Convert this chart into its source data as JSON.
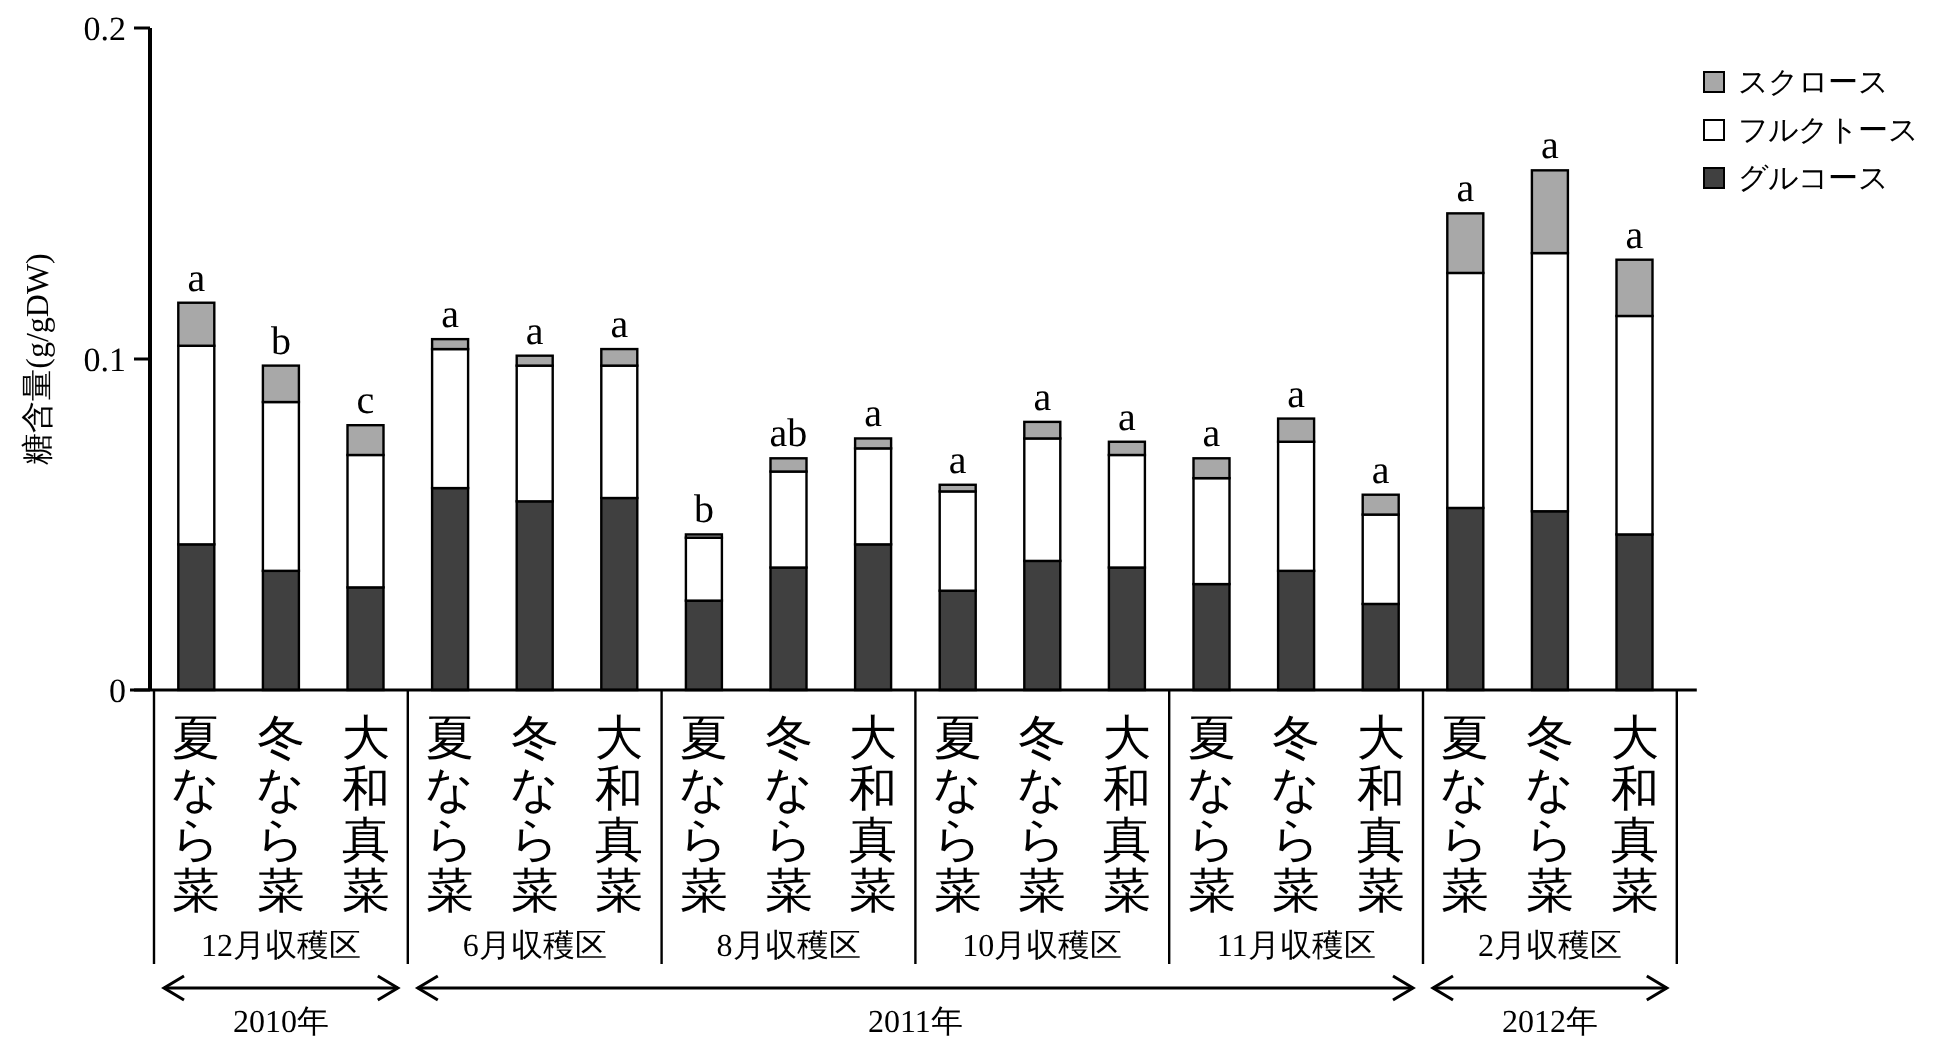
{
  "chart_data": {
    "type": "bar",
    "stacked": true,
    "ylabel": "糖含量(g/gDW)",
    "categories": [
      "夏なら菜",
      "冬なら菜",
      "大和真菜",
      "夏なら菜",
      "冬なら菜",
      "大和真菜",
      "夏なら菜",
      "冬なら菜",
      "大和真菜",
      "夏なら菜",
      "冬なら菜",
      "大和真菜",
      "夏なら菜",
      "冬なら菜",
      "大和真菜",
      "夏なら菜",
      "冬なら菜",
      "大和真菜"
    ],
    "series": [
      {
        "name": "グルコース",
        "color": "#404040",
        "values": [
          0.044,
          0.036,
          0.031,
          0.061,
          0.057,
          0.058,
          0.027,
          0.037,
          0.044,
          0.03,
          0.039,
          0.037,
          0.032,
          0.036,
          0.026,
          0.055,
          0.054,
          0.047
        ]
      },
      {
        "name": "フルクトース",
        "color": "#ffffff",
        "values": [
          0.06,
          0.051,
          0.04,
          0.042,
          0.041,
          0.04,
          0.019,
          0.029,
          0.029,
          0.03,
          0.037,
          0.034,
          0.032,
          0.039,
          0.027,
          0.071,
          0.078,
          0.066
        ]
      },
      {
        "name": "スクロース",
        "color": "#a8a8a8",
        "values": [
          0.013,
          0.011,
          0.009,
          0.003,
          0.003,
          0.005,
          0.001,
          0.004,
          0.003,
          0.002,
          0.005,
          0.004,
          0.006,
          0.007,
          0.006,
          0.018,
          0.025,
          0.017
        ]
      }
    ],
    "ylim": [
      0,
      0.2
    ],
    "yticks": [
      0,
      0.1,
      0.2
    ],
    "grid": false,
    "legend": "top right",
    "annotations": [
      "a",
      "b",
      "c",
      "a",
      "a",
      "a",
      "b",
      "ab",
      "a",
      "a",
      "a",
      "a",
      "a",
      "a",
      "a",
      "a",
      "a",
      "a",
      "12月収穫区",
      "6月収穫区",
      "8月収穫区",
      "10月収穫区",
      "11月収穫区",
      "2月収穫区",
      "2010年",
      "2011年",
      "2012年"
    ]
  }
}
